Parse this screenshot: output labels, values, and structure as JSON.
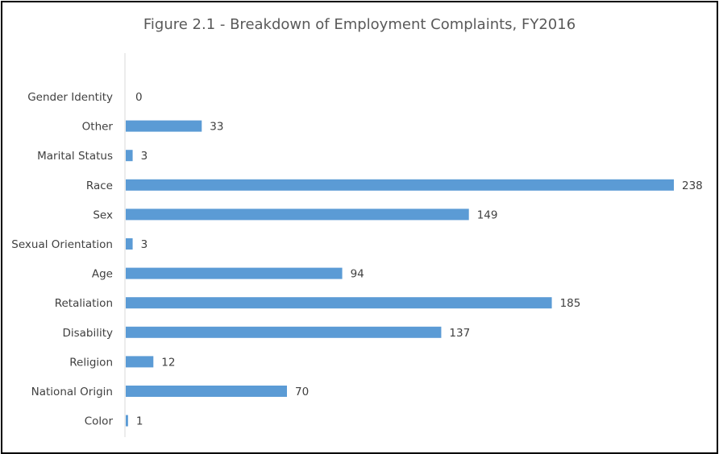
{
  "chart_data": {
    "type": "bar",
    "orientation": "horizontal",
    "title": "Figure 2.1 - Breakdown of Employment Complaints, FY2016",
    "categories": [
      "Gender Identity",
      "Other",
      "Marital Status",
      "Race",
      "Sex",
      "Sexual Orientation",
      "Age",
      "Retaliation",
      "Disability",
      "Religion",
      "National Origin",
      "Color"
    ],
    "values": [
      0,
      33,
      3,
      238,
      149,
      3,
      94,
      185,
      137,
      12,
      70,
      1
    ],
    "xlim": [
      0,
      238
    ],
    "grid": false,
    "legend": "none",
    "data_labels": true,
    "bar_color": "#5b9bd5",
    "axis_color": "#d9d9d9",
    "text_color": "#404040"
  }
}
